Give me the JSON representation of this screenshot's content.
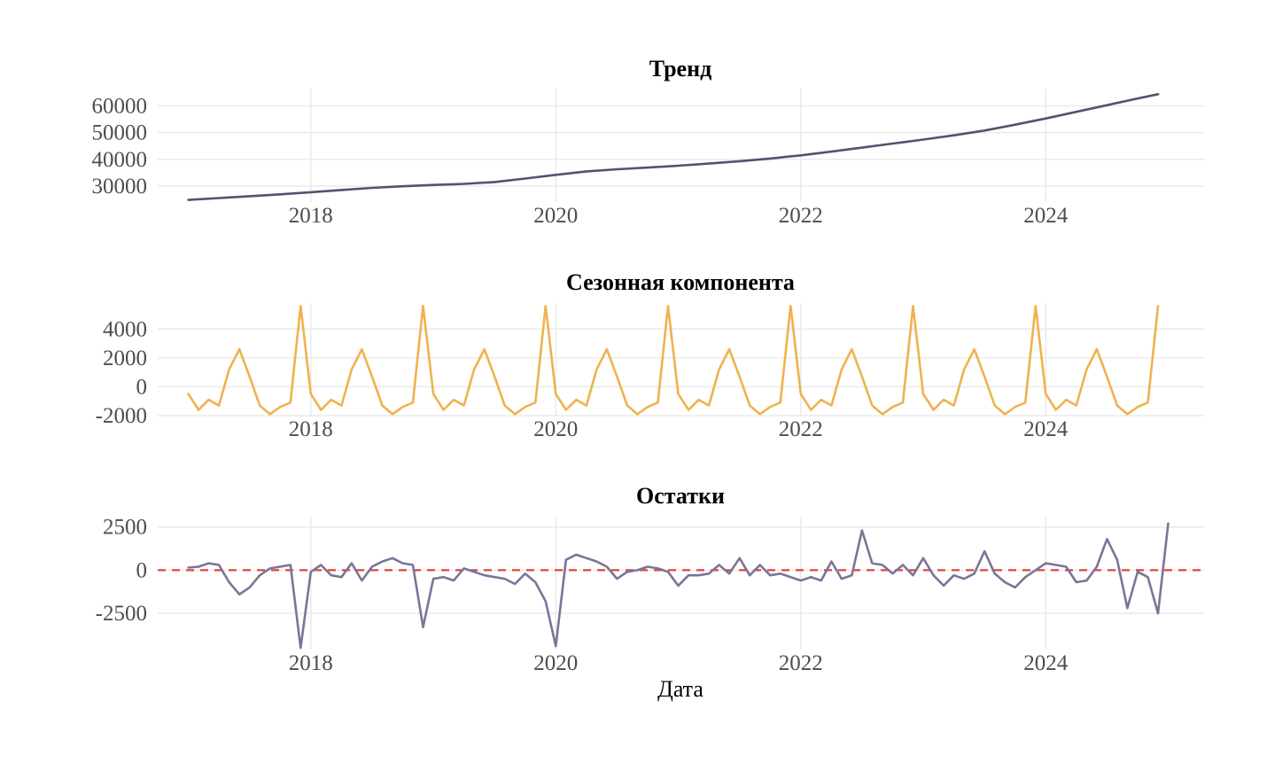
{
  "chart_data": [
    {
      "type": "line",
      "title": "Тренд",
      "xlabel": "",
      "ylabel": "",
      "color": "#55516f",
      "xlim": [
        2016.75,
        2025.3
      ],
      "ylim": [
        24000,
        66500
      ],
      "x_ticks": [
        2018,
        2020,
        2022,
        2024
      ],
      "x_tick_labels": [
        "2018",
        "2020",
        "2022",
        "2024"
      ],
      "y_ticks": [
        30000,
        40000,
        50000,
        60000
      ],
      "y_tick_labels": [
        "30000",
        "40000",
        "50000",
        "60000"
      ],
      "grid": true,
      "series": [
        {
          "x": [
            2017.0,
            2017.25,
            2017.5,
            2017.75,
            2018.0,
            2018.25,
            2018.5,
            2018.75,
            2019.0,
            2019.25,
            2019.5,
            2019.75,
            2020.0,
            2020.25,
            2020.5,
            2020.75,
            2021.0,
            2021.25,
            2021.5,
            2021.75,
            2022.0,
            2022.25,
            2022.5,
            2022.75,
            2023.0,
            2023.25,
            2023.5,
            2023.75,
            2024.0,
            2024.25,
            2024.5,
            2024.75,
            2024.917
          ],
          "y": [
            24800,
            25500,
            26200,
            26900,
            27700,
            28500,
            29300,
            29900,
            30400,
            30800,
            31500,
            32800,
            34200,
            35500,
            36300,
            36900,
            37600,
            38400,
            39300,
            40300,
            41500,
            42900,
            44400,
            45900,
            47400,
            49000,
            50800,
            53000,
            55300,
            57800,
            60300,
            62800,
            64400
          ]
        }
      ]
    },
    {
      "type": "line",
      "title": "Сезонная компонента",
      "xlabel": "",
      "ylabel": "",
      "color": "#efb24e",
      "xlim": [
        2016.75,
        2025.3
      ],
      "ylim": [
        -2000,
        5800
      ],
      "x_ticks": [
        2018,
        2020,
        2022,
        2024
      ],
      "x_tick_labels": [
        "2018",
        "2020",
        "2022",
        "2024"
      ],
      "y_ticks": [
        -2000,
        0,
        2000,
        4000
      ],
      "y_tick_labels": [
        "-2000",
        "0",
        "2000",
        "4000"
      ],
      "grid": true,
      "series": [
        {
          "x_start": 2017.0,
          "x_step": 0.0833333,
          "y": [
            -500,
            -1600,
            -900,
            -1300,
            1200,
            2600,
            700,
            -1300,
            -1900,
            -1400,
            -1100,
            5600,
            -500,
            -1600,
            -900,
            -1300,
            1200,
            2600,
            700,
            -1300,
            -1900,
            -1400,
            -1100,
            5600,
            -500,
            -1600,
            -900,
            -1300,
            1200,
            2600,
            700,
            -1300,
            -1900,
            -1400,
            -1100,
            5600,
            -500,
            -1600,
            -900,
            -1300,
            1200,
            2600,
            700,
            -1300,
            -1900,
            -1400,
            -1100,
            5600,
            -500,
            -1600,
            -900,
            -1300,
            1200,
            2600,
            700,
            -1300,
            -1900,
            -1400,
            -1100,
            5600,
            -500,
            -1600,
            -900,
            -1300,
            1200,
            2600,
            700,
            -1300,
            -1900,
            -1400,
            -1100,
            5600,
            -500,
            -1600,
            -900,
            -1300,
            1200,
            2600,
            700,
            -1300,
            -1900,
            -1400,
            -1100,
            5600,
            -500,
            -1600,
            -900,
            -1300,
            1200,
            2600,
            700,
            -1300,
            -1900,
            -1400,
            -1100,
            5600
          ]
        }
      ]
    },
    {
      "type": "line",
      "title": "Остатки",
      "xlabel": "Дата",
      "ylabel": "",
      "color": "#7b7499",
      "reference_line": {
        "y": 0,
        "color": "#e0443b",
        "style": "dashed"
      },
      "xlim": [
        2016.75,
        2025.3
      ],
      "ylim": [
        -4600,
        3100
      ],
      "x_ticks": [
        2018,
        2020,
        2022,
        2024
      ],
      "x_tick_labels": [
        "2018",
        "2020",
        "2022",
        "2024"
      ],
      "y_ticks": [
        -2500,
        0,
        2500
      ],
      "y_tick_labels": [
        "-2500",
        "0",
        "2500"
      ],
      "grid": true,
      "series": [
        {
          "x_start": 2017.0,
          "x_step": 0.0833333,
          "y": [
            150,
            200,
            400,
            300,
            -700,
            -1400,
            -1000,
            -300,
            100,
            200,
            300,
            -4500,
            -100,
            300,
            -300,
            -400,
            400,
            -600,
            200,
            500,
            700,
            400,
            300,
            -3300,
            -500,
            -400,
            -600,
            100,
            -100,
            -300,
            -400,
            -500,
            -800,
            -200,
            -700,
            -1800,
            -4400,
            600,
            900,
            700,
            500,
            200,
            -500,
            -100,
            0,
            200,
            100,
            -100,
            -900,
            -300,
            -300,
            -200,
            300,
            -200,
            700,
            -300,
            300,
            -300,
            -200,
            -400,
            -600,
            -400,
            -600,
            500,
            -500,
            -300,
            2300,
            400,
            300,
            -200,
            300,
            -300,
            700,
            -300,
            -900,
            -300,
            -500,
            -200,
            1100,
            -200,
            -700,
            -1000,
            -400,
            0,
            400,
            300,
            200,
            -700,
            -600,
            200,
            1800,
            600,
            -2200,
            -100,
            -400,
            -2500,
            2700
          ]
        }
      ]
    }
  ]
}
